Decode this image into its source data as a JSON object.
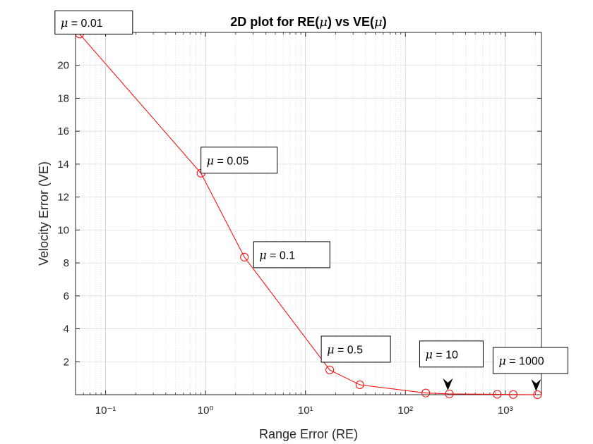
{
  "chart_data": {
    "type": "line",
    "title": "2D plot for RE(μ) vs VE(μ)",
    "xlabel": "Range Error (RE)",
    "ylabel": "Velocity Error (VE)",
    "xscale": "log",
    "xlim": [
      0.05,
      2300
    ],
    "ylim": [
      0,
      22
    ],
    "grid": true,
    "x_ticks": [
      "10⁻¹",
      "10⁰",
      "10¹",
      "10²",
      "10³"
    ],
    "y_ticks": [
      "2",
      "4",
      "6",
      "8",
      "10",
      "12",
      "14",
      "16",
      "18",
      "20"
    ],
    "series": [
      {
        "color": "#ff0000",
        "marker": "circle",
        "x": [
          0.055,
          0.9,
          2.45,
          17.5,
          35,
          160,
          275,
          830,
          1200,
          2100
        ],
        "y": [
          21.9,
          13.45,
          8.35,
          1.5,
          0.6,
          0.1,
          0.05,
          0.02,
          0.01,
          0.0
        ]
      }
    ],
    "annotations": [
      {
        "text": "μ = 0.01",
        "x": 0.055,
        "y": 21.9,
        "arrow": false
      },
      {
        "text": "μ = 0.05",
        "x": 0.9,
        "y": 13.45,
        "arrow": false
      },
      {
        "text": "μ = 0.1",
        "x": 2.45,
        "y": 8.35,
        "arrow": false
      },
      {
        "text": "μ = 0.5",
        "x": 17.5,
        "y": 1.5,
        "arrow": false
      },
      {
        "text": "μ = 10",
        "x": 275,
        "y": 0.05,
        "arrow": true
      },
      {
        "text": "μ = 1000",
        "x": 2100,
        "y": 0.0,
        "arrow": true
      }
    ]
  }
}
